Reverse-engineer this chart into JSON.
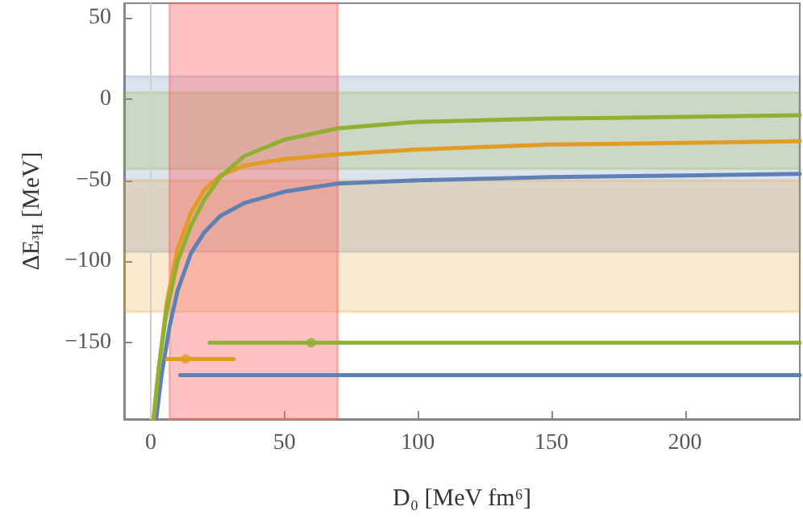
{
  "chart_data": {
    "type": "line",
    "xlabel": "D₀ [MeV fm⁶]",
    "ylabel": "ΔE$_{³H}$ [MeV]",
    "xlim": [
      -10,
      243
    ],
    "ylim": [
      -197,
      59
    ],
    "xticks": [
      0,
      50,
      100,
      150,
      200
    ],
    "yticks": [
      -150,
      -100,
      -50,
      0,
      50
    ],
    "grid": false,
    "marker": "none",
    "line_style": "solid",
    "bands": [
      {
        "axis": "y",
        "from": -94,
        "to": 14,
        "color": "#5e81b5"
      },
      {
        "axis": "y",
        "from": -131,
        "to": -50,
        "color": "#e19c24"
      },
      {
        "axis": "y",
        "from": -43,
        "to": 4,
        "color": "#8fb032"
      },
      {
        "axis": "x",
        "from": 7,
        "to": 70,
        "color": "#ff6666"
      }
    ],
    "ref_lines": [
      {
        "axis": "x",
        "value": 0,
        "color": "#d0d0d0"
      }
    ],
    "series": [
      {
        "color": "#5e81b5",
        "x": [
          2,
          4,
          7,
          10,
          15,
          20,
          26,
          35,
          50,
          70,
          100,
          150,
          200,
          243
        ],
        "values": [
          -197,
          -170,
          -140,
          -118,
          -95,
          -82,
          -72,
          -64,
          -57,
          -52,
          -50,
          -48,
          -47,
          -46
        ]
      },
      {
        "color": "#e19c24",
        "x": [
          1,
          3,
          6,
          10,
          15,
          20,
          26,
          35,
          50,
          70,
          100,
          150,
          200,
          243
        ],
        "values": [
          -197,
          -165,
          -125,
          -92,
          -70,
          -56,
          -47,
          -41,
          -37,
          -34,
          -31,
          -28,
          -27,
          -26
        ]
      },
      {
        "color": "#8fb032",
        "x": [
          1,
          3,
          6,
          10,
          15,
          20,
          26,
          35,
          50,
          70,
          100,
          150,
          200,
          243
        ],
        "values": [
          -197,
          -165,
          -130,
          -100,
          -78,
          -62,
          -48,
          -35,
          -25,
          -18,
          -14,
          -12,
          -11,
          -10
        ]
      },
      {
        "color": "#5e81b5",
        "x": [
          11,
          243
        ],
        "values": [
          -170,
          -170
        ]
      },
      {
        "color": "#e19c24",
        "x": [
          6,
          31
        ],
        "values": [
          -160,
          -160
        ]
      },
      {
        "color": "#8fb032",
        "x": [
          22,
          243
        ],
        "values": [
          -150,
          -150
        ]
      },
      {
        "type": "scatter",
        "marker": "circle",
        "color": "#e19c24",
        "x": [
          13
        ],
        "values": [
          -160
        ]
      },
      {
        "type": "scatter",
        "marker": "circle",
        "color": "#8fb032",
        "x": [
          60
        ],
        "values": [
          -150
        ]
      }
    ]
  }
}
